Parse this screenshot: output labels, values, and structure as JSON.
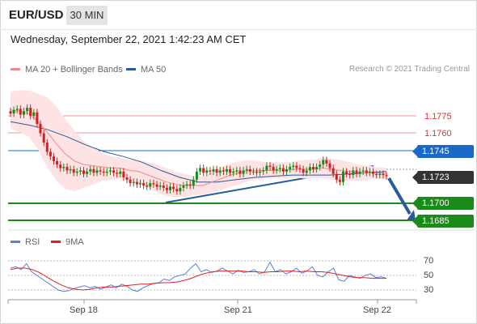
{
  "header": {
    "pair": "EUR/USD",
    "timeframe": "30 MIN"
  },
  "datetime": "Wednesday, September 22, 2021 1:42:23 AM CET",
  "legend": [
    {
      "label": "MA 20 + Bollinger Bands",
      "color": "#f08a8a"
    },
    {
      "label": "MA 50",
      "color": "#2a5a9a"
    }
  ],
  "credit": "Research © 2021 Trading Central",
  "price_levels": [
    {
      "value": "1.1775",
      "style": "text",
      "color": "#e03030"
    },
    {
      "value": "1.1760",
      "style": "text",
      "color": "#e03030"
    },
    {
      "value": "1.1745",
      "style": "box",
      "color": "#1a68c8"
    },
    {
      "value": "1.1723",
      "style": "box",
      "color": "#333333"
    },
    {
      "value": "1.1700",
      "style": "box",
      "color": "#1a8a1a"
    },
    {
      "value": "1.1685",
      "style": "box",
      "color": "#1a8a1a"
    }
  ],
  "rsi_legend": [
    {
      "label": "RSI",
      "color": "#5a7fd8"
    },
    {
      "label": "9MA",
      "color": "#e02020"
    }
  ],
  "rsi_ticks": [
    "70",
    "50",
    "30"
  ],
  "x_labels": [
    "Sep 18",
    "Sep 21",
    "Sep 22"
  ],
  "chart_data": {
    "type": "candlestick",
    "series": [
      {
        "name": "EUR/USD",
        "values": [
          1.1777,
          1.178,
          1.1781,
          1.1776,
          1.1779,
          1.1782,
          1.1775,
          1.1778,
          1.1768,
          1.176,
          1.1752,
          1.1744,
          1.174,
          1.1736,
          1.1733,
          1.173,
          1.1731,
          1.1728,
          1.1729,
          1.1726,
          1.1727,
          1.1728,
          1.1725,
          1.1727,
          1.1729,
          1.1726,
          1.1728,
          1.1727,
          1.1726,
          1.1727,
          1.1728,
          1.1726,
          1.1725,
          1.1727,
          1.1722,
          1.172,
          1.1717,
          1.1718,
          1.1716,
          1.1717,
          1.1715,
          1.1714,
          1.1717,
          1.1716,
          1.1714,
          1.1715,
          1.1713,
          1.1711,
          1.1714,
          1.1712,
          1.171,
          1.1713,
          1.1715,
          1.1716,
          1.1715,
          1.172,
          1.1727,
          1.173,
          1.1726,
          1.1728,
          1.1727,
          1.1729,
          1.1726,
          1.1728,
          1.1727,
          1.1729,
          1.1726,
          1.1727,
          1.1728,
          1.1725,
          1.1728,
          1.1729,
          1.1727,
          1.1727,
          1.1726,
          1.1727,
          1.1728,
          1.1732,
          1.1731,
          1.1728,
          1.1729,
          1.173,
          1.1727,
          1.1729,
          1.1731,
          1.1732,
          1.173,
          1.1729,
          1.1726,
          1.1728,
          1.1731,
          1.1729,
          1.1731,
          1.1733,
          1.1737,
          1.1734,
          1.173,
          1.1725,
          1.172,
          1.1718,
          1.1727,
          1.1725,
          1.1724,
          1.1728,
          1.1725,
          1.1727,
          1.1728,
          1.1726,
          1.1727,
          1.1725,
          1.1724,
          1.1725,
          1.1724,
          1.1723
        ]
      },
      {
        "name": "MA 20",
        "values": [
          1.178,
          1.1779,
          1.1777,
          1.177,
          1.1761,
          1.1751,
          1.1742,
          1.1736,
          1.1733,
          1.1732,
          1.1731,
          1.173,
          1.173,
          1.1728,
          1.1727,
          1.1724,
          1.1721,
          1.1718,
          1.1716,
          1.1715,
          1.1715,
          1.1715,
          1.1718,
          1.1721,
          1.1724,
          1.1726,
          1.1728,
          1.1728,
          1.1728,
          1.1728,
          1.1728,
          1.1729,
          1.1729,
          1.1729,
          1.173,
          1.1729,
          1.1728,
          1.1727,
          1.1726,
          1.1726,
          1.1726,
          1.1725
        ]
      },
      {
        "name": "MA 50",
        "values": [
          1.177,
          1.1767,
          1.1763,
          1.1757,
          1.175,
          1.1744,
          1.174,
          1.1735,
          1.1728,
          1.1722,
          1.1718,
          1.1718,
          1.172,
          1.1722,
          1.1723,
          1.1724,
          1.1724,
          1.1724,
          1.1725,
          1.1726,
          1.1727
        ]
      },
      {
        "name": "RSI",
        "values": [
          60,
          62,
          58,
          66,
          55,
          50,
          45,
          40,
          35,
          30,
          28,
          29,
          32,
          34,
          36,
          33,
          35,
          31,
          34,
          37,
          33,
          38,
          35,
          30,
          28,
          33,
          36,
          39,
          40,
          45,
          43,
          48,
          50,
          52,
          60,
          66,
          55,
          58,
          54,
          56,
          60,
          56,
          52,
          57,
          54,
          55,
          58,
          52,
          55,
          68,
          55,
          58,
          52,
          55,
          60,
          53,
          56,
          62,
          50,
          48,
          55,
          60,
          44,
          42,
          50,
          48,
          46,
          50,
          52,
          47,
          48,
          46
        ]
      },
      {
        "name": "9MA",
        "values": [
          58,
          60,
          60,
          58,
          54,
          48,
          42,
          37,
          33,
          31,
          30,
          31,
          33,
          34,
          34,
          35,
          36,
          37,
          38,
          38,
          39,
          40,
          40,
          41,
          43,
          46,
          50,
          53,
          55,
          56,
          56,
          56,
          56,
          55,
          55,
          54,
          55,
          55,
          56,
          56,
          55,
          56,
          55,
          55,
          54,
          52,
          50,
          48,
          47,
          47,
          46,
          46,
          46
        ]
      }
    ],
    "ylim": [
      1.168,
      1.179
    ],
    "rsi_ylim": [
      15,
      85
    ],
    "pattern": "ascending trendline break, arrow pointing down toward 1.1685"
  }
}
